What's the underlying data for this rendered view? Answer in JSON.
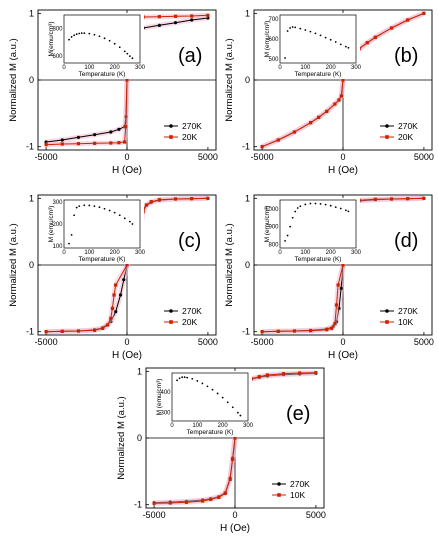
{
  "figure": {
    "chart_data": [
      {
        "type": "line",
        "panel_label": "(a)",
        "xlabel": "H (Oe)",
        "ylabel": "Normalized M (a.u.)",
        "xlim": [
          -5500,
          5500
        ],
        "ylim": [
          -1.05,
          1.05
        ],
        "x_ticks": [
          "-5000",
          "0",
          "5000"
        ],
        "y_ticks": [
          "-1",
          "0",
          "1"
        ],
        "series": [
          {
            "name": "270K",
            "color": "#000000",
            "x": [
              -5000,
              -4000,
              -3000,
              -2000,
              -1000,
              -500,
              -150,
              -60,
              0,
              60,
              150,
              500,
              1000,
              2000,
              3000,
              4000,
              5000
            ],
            "y": [
              -0.93,
              -0.9,
              -0.86,
              -0.82,
              -0.78,
              -0.74,
              -0.7,
              -0.55,
              0.0,
              0.55,
              0.7,
              0.74,
              0.78,
              0.82,
              0.86,
              0.9,
              0.93
            ]
          },
          {
            "name": "20K",
            "color": "#cc2200",
            "x": [
              -5000,
              -4000,
              -3000,
              -2000,
              -1000,
              -500,
              -150,
              -80,
              0,
              80,
              150,
              500,
              1000,
              2000,
              3000,
              4000,
              5000
            ],
            "y": [
              -0.97,
              -0.96,
              -0.955,
              -0.95,
              -0.945,
              -0.94,
              -0.93,
              -0.7,
              0.0,
              0.7,
              0.93,
              0.94,
              0.945,
              0.95,
              0.955,
              0.96,
              0.97
            ]
          }
        ],
        "legend_position": "bottom-right",
        "inset": {
          "xlabel": "Temperature (K)",
          "ylabel": "M(emu/cm³)",
          "xlim": [
            0,
            300
          ],
          "ylim": [
            550,
            900
          ],
          "x_ticks": [
            "0",
            "100",
            "200",
            "300"
          ],
          "y_ticks": [
            "600",
            "800"
          ],
          "x": [
            20,
            30,
            40,
            50,
            60,
            70,
            80,
            100,
            120,
            140,
            160,
            180,
            200,
            220,
            240,
            250,
            260,
            270
          ],
          "y": [
            720,
            740,
            752,
            760,
            765,
            768,
            768,
            764,
            756,
            745,
            730,
            712,
            690,
            665,
            635,
            618,
            600,
            585
          ]
        }
      },
      {
        "type": "line",
        "panel_label": "(b)",
        "xlabel": "H (Oe)",
        "ylabel": "Normalized M (a.u.)",
        "xlim": [
          -5500,
          5500
        ],
        "ylim": [
          -1.05,
          1.05
        ],
        "x_ticks": [
          "-5000",
          "0",
          "5000"
        ],
        "y_ticks": [
          "-1",
          "0",
          "1"
        ],
        "series": [
          {
            "name": "270K",
            "color": "#000000",
            "x": [
              -5000,
              -4000,
              -3000,
              -2000,
              -1500,
              -1000,
              -500,
              -250,
              -100,
              0,
              100,
              250,
              500,
              1000,
              1500,
              2000,
              3000,
              4000,
              5000
            ],
            "y": [
              -1.0,
              -0.9,
              -0.78,
              -0.64,
              -0.56,
              -0.47,
              -0.36,
              -0.3,
              -0.24,
              0.0,
              0.24,
              0.3,
              0.36,
              0.47,
              0.56,
              0.64,
              0.78,
              0.9,
              1.0
            ]
          },
          {
            "name": "20K",
            "color": "#cc2200",
            "x": [
              -5000,
              -4000,
              -3000,
              -2000,
              -1500,
              -1000,
              -500,
              -250,
              -100,
              0,
              100,
              250,
              500,
              1000,
              1500,
              2000,
              3000,
              4000,
              5000
            ],
            "y": [
              -1.0,
              -0.9,
              -0.78,
              -0.64,
              -0.56,
              -0.47,
              -0.36,
              -0.3,
              -0.24,
              0.0,
              0.24,
              0.3,
              0.36,
              0.47,
              0.56,
              0.64,
              0.78,
              0.9,
              1.0
            ]
          }
        ],
        "legend_position": "bottom-right",
        "inset": {
          "xlabel": "Temperature (K)",
          "ylabel": "M (emu/cm³)",
          "xlim": [
            0,
            300
          ],
          "ylim": [
            480,
            720
          ],
          "x_ticks": [
            "0",
            "100",
            "200",
            "300"
          ],
          "y_ticks": [
            "500",
            "600",
            "700"
          ],
          "x": [
            20,
            30,
            40,
            50,
            60,
            80,
            100,
            120,
            140,
            160,
            180,
            200,
            220,
            240,
            260,
            270
          ],
          "y": [
            505,
            640,
            655,
            660,
            658,
            652,
            645,
            637,
            628,
            618,
            607,
            596,
            585,
            573,
            562,
            556
          ]
        }
      },
      {
        "type": "line",
        "panel_label": "(c)",
        "xlabel": "H (Oe)",
        "ylabel": "Normalized M (a.u.)",
        "xlim": [
          -5500,
          5500
        ],
        "ylim": [
          -1.05,
          1.05
        ],
        "x_ticks": [
          "-5000",
          "0",
          "5000"
        ],
        "y_ticks": [
          "-1",
          "0",
          "1"
        ],
        "series": [
          {
            "name": "270K",
            "color": "#000000",
            "x": [
              -5000,
              -4000,
              -3000,
              -2000,
              -1500,
              -1000,
              -700,
              -400,
              -200,
              0,
              200,
              400,
              700,
              1000,
              1500,
              2000,
              3000,
              4000,
              5000
            ],
            "y": [
              -1.0,
              -0.995,
              -0.99,
              -0.97,
              -0.94,
              -0.85,
              -0.7,
              -0.45,
              -0.22,
              0.0,
              0.22,
              0.45,
              0.7,
              0.85,
              0.94,
              0.97,
              0.99,
              0.995,
              1.0
            ]
          },
          {
            "name": "20K",
            "color": "#cc2200",
            "x": [
              -5000,
              -4000,
              -3000,
              -2000,
              -1500,
              -1200,
              -1000,
              -900,
              -800,
              -700,
              0,
              700,
              800,
              900,
              1000,
              1200,
              1500,
              2000,
              3000,
              4000,
              5000
            ],
            "y": [
              -1.0,
              -0.995,
              -0.99,
              -0.98,
              -0.95,
              -0.9,
              -0.8,
              -0.65,
              -0.45,
              -0.3,
              0.0,
              0.3,
              0.45,
              0.65,
              0.8,
              0.9,
              0.95,
              0.98,
              0.99,
              0.995,
              1.0
            ]
          }
        ],
        "legend_position": "bottom-right",
        "inset": {
          "xlabel": "Temperature (K)",
          "ylabel": "M (emu/cm³)",
          "xlim": [
            0,
            300
          ],
          "ylim": [
            90,
            310
          ],
          "x_ticks": [
            "0",
            "100",
            "200",
            "300"
          ],
          "y_ticks": [
            "100",
            "200",
            "300"
          ],
          "x": [
            20,
            30,
            40,
            50,
            60,
            80,
            100,
            120,
            140,
            160,
            180,
            200,
            220,
            240,
            260,
            270
          ],
          "y": [
            110,
            150,
            240,
            275,
            282,
            286,
            285,
            282,
            277,
            270,
            262,
            252,
            240,
            226,
            211,
            200
          ]
        }
      },
      {
        "type": "line",
        "panel_label": "(d)",
        "xlabel": "H (Oe)",
        "ylabel": "Normalized M (a.u.)",
        "xlim": [
          -5500,
          5500
        ],
        "ylim": [
          -1.05,
          1.05
        ],
        "x_ticks": [
          "-5000",
          "0",
          "5000"
        ],
        "y_ticks": [
          "-1",
          "0",
          "1"
        ],
        "series": [
          {
            "name": "270K",
            "color": "#000000",
            "x": [
              -5000,
              -4000,
              -3000,
              -2000,
              -1000,
              -600,
              -400,
              -250,
              -120,
              0,
              120,
              250,
              400,
              600,
              1000,
              2000,
              3000,
              4000,
              5000
            ],
            "y": [
              -1.0,
              -0.995,
              -0.99,
              -0.98,
              -0.96,
              -0.92,
              -0.85,
              -0.65,
              -0.35,
              0.0,
              0.35,
              0.65,
              0.85,
              0.92,
              0.96,
              0.98,
              0.99,
              0.995,
              1.0
            ]
          },
          {
            "name": "10K",
            "color": "#cc2200",
            "x": [
              -5000,
              -4000,
              -3000,
              -2000,
              -1000,
              -700,
              -500,
              -400,
              -300,
              0,
              300,
              400,
              500,
              700,
              1000,
              2000,
              3000,
              4000,
              5000
            ],
            "y": [
              -1.0,
              -0.995,
              -0.99,
              -0.985,
              -0.97,
              -0.95,
              -0.88,
              -0.6,
              -0.3,
              0.0,
              0.3,
              0.6,
              0.88,
              0.95,
              0.97,
              0.985,
              0.99,
              0.995,
              1.0
            ]
          }
        ],
        "legend_position": "bottom-right",
        "inset": {
          "xlabel": "Temperature (K)",
          "ylabel": "M (emu/cm³)",
          "xlim": [
            0,
            300
          ],
          "ylim": [
            780,
            1050
          ],
          "x_ticks": [
            "0",
            "100",
            "200",
            "300"
          ],
          "y_ticks": [
            "800",
            "900",
            "1000"
          ],
          "x": [
            20,
            30,
            40,
            50,
            60,
            70,
            80,
            100,
            120,
            140,
            160,
            180,
            200,
            220,
            240,
            260,
            270
          ],
          "y": [
            820,
            850,
            900,
            950,
            985,
            1005,
            1015,
            1025,
            1030,
            1030,
            1028,
            1024,
            1018,
            1010,
            1002,
            992,
            986
          ]
        }
      },
      {
        "type": "line",
        "panel_label": "(e)",
        "xlabel": "H (Oe)",
        "ylabel": "Normalized M (a.u.)",
        "xlim": [
          -5500,
          5500
        ],
        "ylim": [
          -1.05,
          1.05
        ],
        "x_ticks": [
          "-5000",
          "0",
          "5000"
        ],
        "y_ticks": [
          "-1",
          "0",
          "1"
        ],
        "series": [
          {
            "name": "270K",
            "color": "#000000",
            "x": [
              -5000,
              -4000,
              -3000,
              -2000,
              -1500,
              -1000,
              -600,
              -300,
              -150,
              0,
              150,
              300,
              600,
              1000,
              1500,
              2000,
              3000,
              4000,
              5000
            ],
            "y": [
              -0.97,
              -0.96,
              -0.95,
              -0.93,
              -0.91,
              -0.88,
              -0.82,
              -0.6,
              -0.3,
              0.0,
              0.3,
              0.6,
              0.82,
              0.88,
              0.91,
              0.93,
              0.95,
              0.96,
              0.97
            ]
          },
          {
            "name": "10K",
            "color": "#cc2200",
            "x": [
              -5000,
              -4000,
              -3000,
              -2000,
              -1500,
              -1000,
              -600,
              -300,
              -150,
              0,
              150,
              300,
              600,
              1000,
              1500,
              2000,
              3000,
              4000,
              5000
            ],
            "y": [
              -0.98,
              -0.975,
              -0.965,
              -0.945,
              -0.92,
              -0.89,
              -0.83,
              -0.62,
              -0.32,
              0.0,
              0.32,
              0.62,
              0.83,
              0.89,
              0.92,
              0.945,
              0.965,
              0.975,
              0.98
            ]
          }
        ],
        "legend_position": "bottom-right",
        "inset": {
          "xlabel": "Temperature (K)",
          "ylabel": "M (emu/cm³)",
          "xlim": [
            0,
            300
          ],
          "ylim": [
            260,
            490
          ],
          "x_ticks": [
            "0",
            "100",
            "200",
            "300"
          ],
          "y_ticks": [
            "300",
            "400"
          ],
          "x": [
            20,
            30,
            40,
            50,
            60,
            80,
            100,
            120,
            140,
            160,
            180,
            200,
            220,
            240,
            260,
            270
          ],
          "y": [
            455,
            465,
            470,
            470,
            468,
            462,
            452,
            440,
            426,
            410,
            392,
            372,
            350,
            326,
            300,
            286
          ]
        }
      }
    ]
  }
}
